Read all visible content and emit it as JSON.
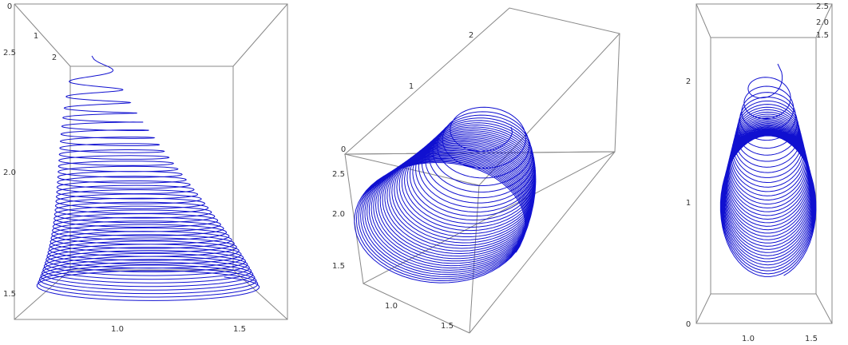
{
  "panels": [
    {
      "ticks": [
        "0",
        "1",
        "2",
        "2.5",
        "2.0",
        "1.5",
        "1.0",
        "1.5"
      ]
    },
    {
      "ticks": [
        "2",
        "1",
        "0",
        "2.5",
        "2.0",
        "1.5",
        "1.0",
        "1.5"
      ]
    },
    {
      "ticks": [
        "2.5",
        "2.0",
        "1.5",
        "2",
        "1",
        "0",
        "1.0",
        "1.5"
      ]
    }
  ]
}
